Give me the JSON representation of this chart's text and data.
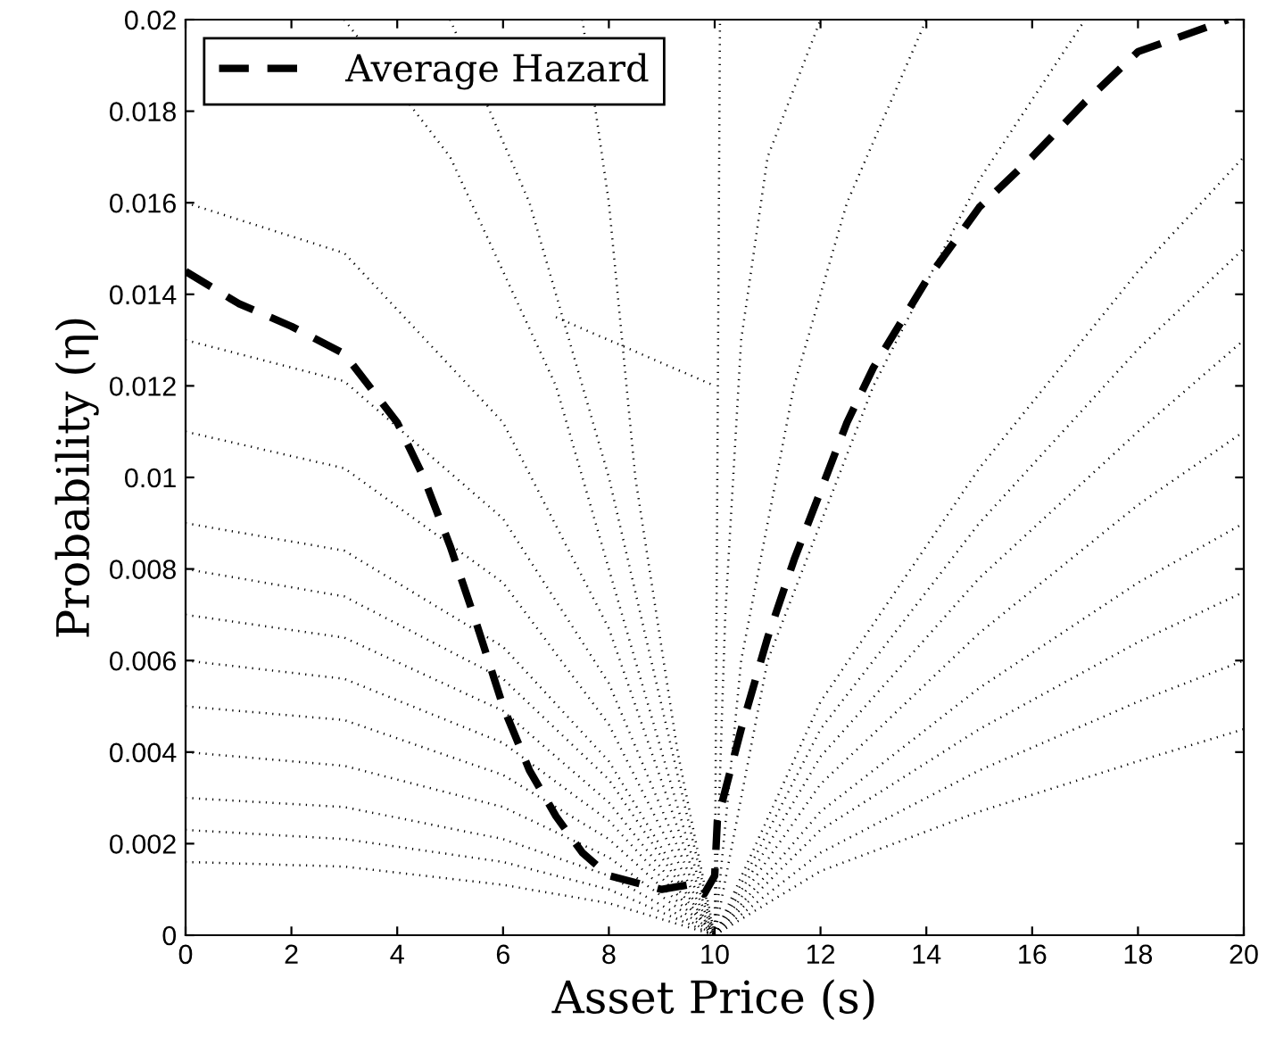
{
  "chart_data": {
    "type": "line",
    "xlabel": "Asset Price (s)",
    "ylabel": "Probability (η)",
    "xlim": [
      0,
      20
    ],
    "ylim": [
      0,
      0.02
    ],
    "xticks": [
      0,
      2,
      4,
      6,
      8,
      10,
      12,
      14,
      16,
      18,
      20
    ],
    "yticks": [
      0,
      0.002,
      0.004,
      0.006,
      0.008,
      0.01,
      0.012,
      0.014,
      0.016,
      0.018,
      0.02
    ],
    "grid": false,
    "legend": "top left",
    "marker": "none",
    "series": [
      {
        "name": "Average Hazard",
        "color": "#000000",
        "line_style": "dashed",
        "x": [
          0,
          1,
          2,
          3,
          4,
          4.5,
          5,
          5.5,
          6,
          6.5,
          7,
          7.5,
          8,
          9,
          9.5,
          9.8,
          10,
          10.05,
          10.5,
          11,
          11.5,
          12,
          12.5,
          13,
          14,
          15,
          16,
          17,
          18,
          19.7
        ],
        "values": [
          0.0145,
          0.0138,
          0.0133,
          0.0127,
          0.0112,
          0.01,
          0.0085,
          0.0068,
          0.005,
          0.0036,
          0.0026,
          0.0018,
          0.0013,
          0.001,
          0.0011,
          0.0009,
          0.0013,
          0.0025,
          0.0045,
          0.0065,
          0.0082,
          0.0097,
          0.0112,
          0.0124,
          0.0143,
          0.0159,
          0.017,
          0.0182,
          0.0193,
          0.02
        ]
      },
      {
        "color": "#000000",
        "line_style": "dotted",
        "x": [
          0,
          3,
          6,
          8,
          10
        ],
        "values": [
          0.0016,
          0.0015,
          0.0011,
          0.0007,
          0
        ]
      },
      {
        "color": "#000000",
        "line_style": "dotted",
        "x": [
          0,
          3,
          6,
          8,
          10
        ],
        "values": [
          0.0023,
          0.0021,
          0.0016,
          0.001,
          0
        ]
      },
      {
        "color": "#000000",
        "line_style": "dotted",
        "x": [
          0,
          3,
          6,
          8,
          10
        ],
        "values": [
          0.003,
          0.0028,
          0.0021,
          0.0013,
          0
        ]
      },
      {
        "color": "#000000",
        "line_style": "dotted",
        "x": [
          0,
          3,
          6,
          8,
          10
        ],
        "values": [
          0.004,
          0.0037,
          0.0028,
          0.0017,
          0
        ]
      },
      {
        "color": "#000000",
        "line_style": "dotted",
        "x": [
          0,
          3,
          6,
          8,
          10
        ],
        "values": [
          0.005,
          0.0047,
          0.0035,
          0.0021,
          0
        ]
      },
      {
        "color": "#000000",
        "line_style": "dotted",
        "x": [
          0,
          3,
          6,
          8,
          10
        ],
        "values": [
          0.006,
          0.0056,
          0.0042,
          0.0025,
          0
        ]
      },
      {
        "color": "#000000",
        "line_style": "dotted",
        "x": [
          0,
          3,
          6,
          8,
          10
        ],
        "values": [
          0.007,
          0.0065,
          0.0049,
          0.0029,
          0
        ]
      },
      {
        "color": "#000000",
        "line_style": "dotted",
        "x": [
          0,
          3,
          6,
          8,
          10
        ],
        "values": [
          0.008,
          0.0074,
          0.0056,
          0.0034,
          0
        ]
      },
      {
        "color": "#000000",
        "line_style": "dotted",
        "x": [
          0,
          3,
          6,
          8,
          10
        ],
        "values": [
          0.009,
          0.0084,
          0.0063,
          0.0038,
          0
        ]
      },
      {
        "color": "#000000",
        "line_style": "dotted",
        "x": [
          0,
          3,
          6,
          8,
          10
        ],
        "values": [
          0.011,
          0.0102,
          0.0077,
          0.0046,
          0
        ]
      },
      {
        "color": "#000000",
        "line_style": "dotted",
        "x": [
          0,
          3,
          6,
          8,
          10
        ],
        "values": [
          0.013,
          0.0121,
          0.0091,
          0.0055,
          0
        ]
      },
      {
        "color": "#000000",
        "line_style": "dotted",
        "x": [
          0,
          3,
          6,
          8,
          10
        ],
        "values": [
          0.016,
          0.0149,
          0.0112,
          0.0067,
          0
        ]
      },
      {
        "color": "#000000",
        "line_style": "dotted",
        "x": [
          3,
          5,
          7,
          8.5,
          10
        ],
        "values": [
          0.02,
          0.017,
          0.012,
          0.006,
          0
        ]
      },
      {
        "color": "#000000",
        "line_style": "dotted",
        "x": [
          5,
          6.5,
          8,
          9,
          10
        ],
        "values": [
          0.02,
          0.016,
          0.01,
          0.005,
          0
        ]
      },
      {
        "color": "#000000",
        "line_style": "dotted",
        "x": [
          7.5,
          8,
          8.5,
          9.3,
          10
        ],
        "values": [
          0.02,
          0.016,
          0.01,
          0.004,
          0
        ]
      },
      {
        "color": "#000000",
        "line_style": "dotted",
        "x": [
          7,
          10
        ],
        "values": [
          0.0135,
          0.012
        ]
      },
      {
        "color": "#000000",
        "line_style": "dotted",
        "x": [
          10,
          12,
          15,
          18,
          20
        ],
        "values": [
          0,
          0.0014,
          0.0027,
          0.0038,
          0.0045
        ]
      },
      {
        "color": "#000000",
        "line_style": "dotted",
        "x": [
          10,
          12,
          15,
          18,
          20
        ],
        "values": [
          0,
          0.0018,
          0.0036,
          0.0051,
          0.006
        ]
      },
      {
        "color": "#000000",
        "line_style": "dotted",
        "x": [
          10,
          12,
          15,
          18,
          20
        ],
        "values": [
          0,
          0.0023,
          0.0045,
          0.0064,
          0.0075
        ]
      },
      {
        "color": "#000000",
        "line_style": "dotted",
        "x": [
          10,
          12,
          15,
          18,
          20
        ],
        "values": [
          0,
          0.0027,
          0.0054,
          0.0077,
          0.009
        ]
      },
      {
        "color": "#000000",
        "line_style": "dotted",
        "x": [
          10,
          12,
          15,
          18,
          20
        ],
        "values": [
          0,
          0.0033,
          0.0066,
          0.0094,
          0.011
        ]
      },
      {
        "color": "#000000",
        "line_style": "dotted",
        "x": [
          10,
          12,
          15,
          18,
          20
        ],
        "values": [
          0,
          0.0039,
          0.0078,
          0.011,
          0.013
        ]
      },
      {
        "color": "#000000",
        "line_style": "dotted",
        "x": [
          10,
          12,
          15,
          18,
          20
        ],
        "values": [
          0,
          0.0045,
          0.009,
          0.0128,
          0.015
        ]
      },
      {
        "color": "#000000",
        "line_style": "dotted",
        "x": [
          10,
          12,
          15,
          18,
          20
        ],
        "values": [
          0,
          0.0051,
          0.0102,
          0.0145,
          0.017
        ]
      },
      {
        "color": "#000000",
        "line_style": "dotted",
        "x": [
          10,
          11,
          13,
          15,
          17
        ],
        "values": [
          0,
          0.006,
          0.012,
          0.0165,
          0.02
        ]
      },
      {
        "color": "#000000",
        "line_style": "dotted",
        "x": [
          10,
          10.5,
          11.5,
          12.5,
          14
        ],
        "values": [
          0,
          0.006,
          0.012,
          0.016,
          0.02
        ]
      },
      {
        "color": "#000000",
        "line_style": "dotted",
        "x": [
          10,
          10.2,
          10.5,
          11,
          12
        ],
        "values": [
          0,
          0.007,
          0.013,
          0.017,
          0.02
        ]
      },
      {
        "color": "#000000",
        "line_style": "dotted",
        "x": [
          10,
          10.05,
          10.1
        ],
        "values": [
          0,
          0.01,
          0.02
        ]
      }
    ]
  }
}
